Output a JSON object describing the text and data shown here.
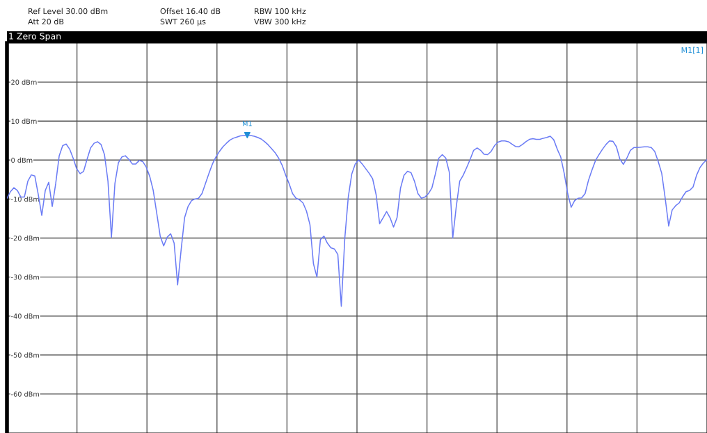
{
  "chart_data": {
    "type": "line",
    "title": "1 Zero Span",
    "annotations": [
      "Ref Level 30.00 dBm",
      "Offset 16.40 dB",
      "RBW 100 kHz",
      "Att 20 dB",
      "SWT 260 µs",
      "VBW 300 kHz",
      "M1[1]"
    ],
    "categories": [
      null,
      null,
      null,
      null,
      null,
      null,
      null,
      null,
      null,
      null,
      null,
      null,
      null,
      null,
      null,
      null,
      null,
      null,
      null,
      null,
      null,
      null,
      null,
      null,
      null,
      null,
      null,
      null,
      null,
      null,
      null,
      null,
      null,
      null,
      null,
      null,
      null,
      null,
      null,
      null,
      null,
      null,
      null,
      null,
      null,
      null,
      null,
      null,
      null,
      null,
      null,
      null,
      null,
      null,
      null,
      null,
      null,
      null,
      null,
      null,
      null,
      null,
      null,
      null,
      null,
      null,
      null,
      null,
      null,
      null,
      null,
      null,
      null,
      null,
      null,
      null,
      null,
      null,
      null,
      null,
      null,
      null,
      null,
      null,
      null,
      null,
      null,
      null,
      null,
      null,
      null,
      null,
      null,
      null,
      null,
      null,
      null,
      null,
      null,
      null,
      null,
      null,
      null,
      null,
      null,
      null,
      null,
      null,
      null,
      null,
      null,
      null,
      null,
      null,
      null,
      null,
      null,
      null,
      null,
      null,
      null,
      null,
      null,
      null,
      null,
      null,
      null,
      null,
      null,
      null,
      null,
      null,
      null,
      null,
      null,
      null,
      null,
      null,
      null,
      null,
      null,
      null,
      null,
      null,
      null,
      null,
      null,
      null,
      null,
      null,
      null,
      null,
      null,
      null,
      null,
      null,
      null,
      null,
      null,
      null,
      null,
      null,
      null,
      null,
      null,
      null,
      null,
      null,
      null,
      null,
      null,
      null,
      null,
      null,
      null,
      null,
      null,
      null,
      null,
      null,
      null,
      null,
      null,
      null,
      null,
      null,
      null,
      null,
      null,
      null,
      null,
      null,
      null,
      null,
      null,
      null,
      null,
      null,
      null,
      null,
      null,
      null
    ],
    "series": [
      {
        "color": "#6b7cf5",
        "marker": "none",
        "values": [
          -9.8,
          -8.1,
          -7.1,
          -7.8,
          -9.5,
          -9.5,
          -5.4,
          -3.8,
          -4.1,
          -8.9,
          -14.2,
          -7.8,
          -5.7,
          -11.9,
          -6.0,
          1.1,
          3.7,
          4.1,
          2.8,
          0.5,
          -2.2,
          -3.5,
          -2.9,
          0.2,
          3.1,
          4.3,
          4.7,
          4.0,
          1.4,
          -5.4,
          -19.8,
          -6.0,
          -0.7,
          0.8,
          1.1,
          0.2,
          -1.0,
          -1.0,
          -0.1,
          -0.4,
          -1.8,
          -4.2,
          -7.8,
          -13.6,
          -19.5,
          -22.0,
          -19.8,
          -18.9,
          -21.3,
          -32.0,
          -23.1,
          -14.8,
          -11.9,
          -10.4,
          -10.0,
          -9.8,
          -8.6,
          -6.0,
          -3.4,
          -1.0,
          0.8,
          2.2,
          3.4,
          4.3,
          5.1,
          5.6,
          5.9,
          6.2,
          6.3,
          6.4,
          6.3,
          6.1,
          5.8,
          5.4,
          4.7,
          3.9,
          2.9,
          1.9,
          0.5,
          -1.3,
          -3.8,
          -6.0,
          -8.6,
          -9.8,
          -10.2,
          -11.0,
          -13.1,
          -16.6,
          -26.6,
          -30.0,
          -20.4,
          -19.5,
          -21.3,
          -22.5,
          -22.8,
          -24.2,
          -37.5,
          -20.1,
          -9.5,
          -3.6,
          -1.0,
          0.0,
          -1.0,
          -2.2,
          -3.4,
          -4.8,
          -8.9,
          -16.3,
          -14.8,
          -13.2,
          -14.8,
          -17.2,
          -14.8,
          -7.2,
          -3.9,
          -2.9,
          -3.2,
          -5.4,
          -8.6,
          -9.8,
          -9.5,
          -8.6,
          -7.2,
          -3.6,
          0.5,
          1.4,
          0.5,
          -3.1,
          -20.0,
          -12.0,
          -5.4,
          -3.9,
          -1.9,
          0.2,
          2.5,
          3.1,
          2.5,
          1.5,
          1.4,
          2.2,
          3.7,
          4.6,
          4.9,
          4.9,
          4.7,
          4.1,
          3.5,
          3.4,
          4.0,
          4.7,
          5.3,
          5.5,
          5.3,
          5.3,
          5.6,
          5.8,
          6.1,
          5.2,
          2.8,
          0.8,
          -3.4,
          -8.6,
          -12.1,
          -10.4,
          -9.8,
          -9.7,
          -8.6,
          -5.1,
          -2.5,
          -0.1,
          1.4,
          2.8,
          4.0,
          4.9,
          4.8,
          3.4,
          0.2,
          -1.1,
          0.5,
          2.5,
          3.2,
          3.2,
          3.3,
          3.4,
          3.4,
          3.2,
          2.2,
          -0.4,
          -3.4,
          -9.8,
          -16.9,
          -12.8,
          -11.7,
          -11.0,
          -9.4,
          -8.1,
          -7.8,
          -6.9,
          -3.9,
          -1.9,
          -0.7,
          0.1
        ]
      },
      {
        "type": "scatter",
        "name": "M1",
        "color": "#1f8fd6",
        "marker": "triangle",
        "values": [
          null,
          null,
          null,
          null,
          null,
          null,
          null,
          null,
          null,
          null,
          null,
          null,
          null,
          null,
          null,
          null,
          null,
          null,
          null,
          null,
          null,
          null,
          null,
          null,
          null,
          null,
          null,
          null,
          null,
          null,
          null,
          null,
          null,
          null,
          null,
          null,
          null,
          null,
          null,
          null,
          null,
          null,
          null,
          null,
          null,
          null,
          null,
          null,
          null,
          null,
          null,
          null,
          null,
          null,
          null,
          null,
          null,
          null,
          null,
          null,
          null,
          null,
          null,
          null,
          null,
          null,
          null,
          null,
          null,
          6.4,
          null,
          null,
          null,
          null,
          null,
          null,
          null,
          null,
          null,
          null,
          null,
          null,
          null,
          null,
          null,
          null,
          null,
          null,
          null,
          null,
          null,
          null,
          null,
          null,
          null,
          null,
          null,
          null,
          null,
          null,
          null,
          null,
          null,
          null,
          null,
          null,
          null,
          null,
          null,
          null,
          null,
          null,
          null,
          null,
          null,
          null,
          null,
          null,
          null,
          null,
          null,
          null,
          null,
          null,
          null,
          null,
          null,
          null,
          null,
          null,
          null,
          null,
          null,
          null,
          null,
          null,
          null,
          null,
          null,
          null,
          null,
          null,
          null,
          null,
          null,
          null,
          null,
          null,
          null,
          null,
          null,
          null,
          null,
          null,
          null,
          null,
          null,
          null,
          null,
          null,
          null,
          null,
          null,
          null,
          null,
          null,
          null,
          null,
          null,
          null,
          null,
          null,
          null,
          null,
          null,
          null,
          null,
          null,
          null,
          null,
          null,
          null,
          null,
          null,
          null,
          null,
          null,
          null,
          null,
          null,
          null,
          null,
          null,
          null,
          null,
          null,
          null,
          null,
          null,
          null,
          null,
          null
        ]
      }
    ],
    "ylim": [
      -70,
      30
    ],
    "yticks": [
      {
        "value": -60,
        "label": "-60 dBm"
      },
      {
        "value": -50,
        "label": "-50 dBm"
      },
      {
        "value": -40,
        "label": "-40 dBm"
      },
      {
        "value": -30,
        "label": "-30 dBm"
      },
      {
        "value": -20,
        "label": "-20 dBm"
      },
      {
        "value": -10,
        "label": "-10 dBm"
      },
      {
        "value": 0,
        "label": "0 dBm"
      },
      {
        "value": 10,
        "label": "10 dBm"
      },
      {
        "value": 20,
        "label": "20 dBm"
      }
    ],
    "grid": true,
    "legend": false,
    "tick_labels": "y"
  }
}
